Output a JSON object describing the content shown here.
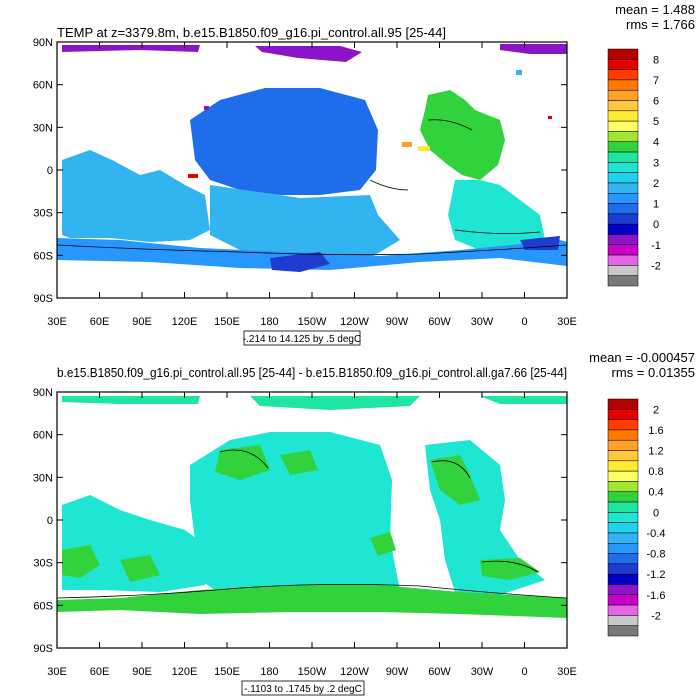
{
  "chart_data": [
    {
      "type": "heatmap",
      "title": "TEMP at z=3379.8m, b.e15.B1850.f09_g16.pi_control.all.95 [25-44]",
      "stats": {
        "mean": "mean = 1.488",
        "rms": "rms = 1.766"
      },
      "contour_info": "-.214 to 14.125 by .5 degC",
      "x_ticks": [
        "30E",
        "60E",
        "90E",
        "120E",
        "150E",
        "180",
        "150W",
        "120W",
        "90W",
        "60W",
        "30W",
        "0",
        "30E"
      ],
      "y_ticks": [
        "90N",
        "60N",
        "30N",
        "0",
        "30S",
        "60S",
        "90S"
      ],
      "colorbar": {
        "labels": [
          "8",
          "7",
          "6",
          "5",
          "4",
          "3",
          "2",
          "1",
          "0",
          "-1",
          "-2"
        ],
        "colors": [
          "#b40000",
          "#e60000",
          "#ff3c00",
          "#ff7800",
          "#ffa028",
          "#ffc83c",
          "#ffeb32",
          "#ffff64",
          "#a0e632",
          "#32d23c",
          "#1ee6a0",
          "#1ee6d2",
          "#1ed2f0",
          "#32b4f0",
          "#2896ff",
          "#1e6eeb",
          "#1e3cd2",
          "#0000c8",
          "#8c14c8",
          "#c800c8",
          "#e664e6",
          "#c8c8c8",
          "#787878"
        ]
      },
      "range": [
        -0.214,
        14.125
      ],
      "interval": 0.5,
      "units": "degC"
    },
    {
      "type": "heatmap",
      "title": "b.e15.B1850.f09_g16.pi_control.all.95 [25-44] - b.e15.B1850.f09_g16.pi_control.all.ga7.66 [25-44]",
      "stats": {
        "mean": "mean = -0.000457",
        "rms": "rms = 0.01355"
      },
      "contour_info": "-.1103 to .1745 by .2 degC",
      "x_ticks": [
        "30E",
        "60E",
        "90E",
        "120E",
        "150E",
        "180",
        "150W",
        "120W",
        "90W",
        "60W",
        "30W",
        "0",
        "30E"
      ],
      "y_ticks": [
        "90N",
        "60N",
        "30N",
        "0",
        "30S",
        "60S",
        "90S"
      ],
      "colorbar": {
        "labels": [
          "2",
          "1.6",
          "1.2",
          "0.8",
          "0.4",
          "0",
          "-0.4",
          "-0.8",
          "-1.2",
          "-1.6",
          "-2"
        ],
        "colors": [
          "#b40000",
          "#e60000",
          "#ff3c00",
          "#ff7800",
          "#ffa028",
          "#ffc83c",
          "#ffeb32",
          "#ffff64",
          "#a0e632",
          "#32d23c",
          "#1ee6a0",
          "#1ee6d2",
          "#1ed2f0",
          "#32b4f0",
          "#2896ff",
          "#1e6eeb",
          "#1e3cd2",
          "#0000c8",
          "#8c14c8",
          "#c800c8",
          "#e664e6",
          "#c8c8c8",
          "#787878"
        ]
      },
      "range": [
        -0.1103,
        0.1745
      ],
      "interval": 0.2,
      "units": "degC"
    }
  ]
}
